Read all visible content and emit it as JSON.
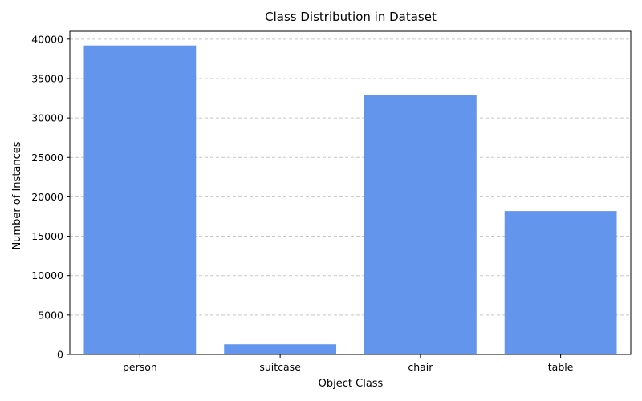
{
  "chart_data": {
    "type": "bar",
    "title": "Class Distribution in Dataset",
    "xlabel": "Object Class",
    "ylabel": "Number of Instances",
    "categories": [
      "person",
      "suitcase",
      "chair",
      "table"
    ],
    "values": [
      39200,
      1300,
      32900,
      18200
    ],
    "ylim": [
      0,
      41000
    ],
    "yticks": [
      0,
      5000,
      10000,
      15000,
      20000,
      25000,
      30000,
      35000,
      40000
    ],
    "grid": "y-dashed",
    "bar_color": "#6495ED",
    "grid_color": "#c8c8c8"
  }
}
